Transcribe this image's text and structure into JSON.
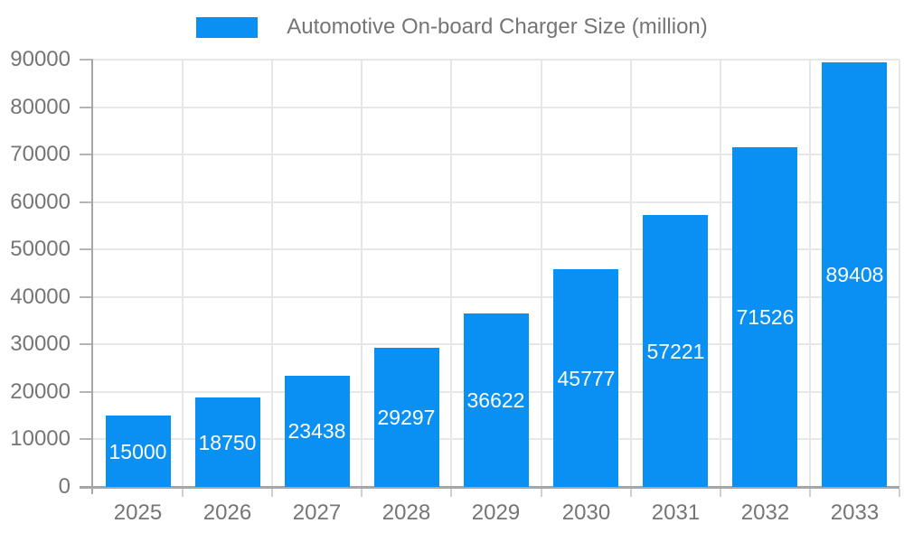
{
  "chart_data": {
    "type": "bar",
    "title": "Automotive On-board Charger Size (million)",
    "legend": {
      "label": "Automotive On-board Charger Size (million)",
      "position": "top"
    },
    "categories": [
      "2025",
      "2026",
      "2027",
      "2028",
      "2029",
      "2030",
      "2031",
      "2032",
      "2033"
    ],
    "values": [
      15000,
      18750,
      23438,
      29297,
      36622,
      45777,
      57221,
      71526,
      89408
    ],
    "value_labels": [
      "15000",
      "18750",
      "23438",
      "29297",
      "36622",
      "45777",
      "57221",
      "71526",
      "89408"
    ],
    "xlabel": "",
    "ylabel": "",
    "ylim": [
      0,
      90000
    ],
    "yticks": [
      0,
      10000,
      20000,
      30000,
      40000,
      50000,
      60000,
      70000,
      80000,
      90000
    ],
    "grid": true,
    "colors": {
      "bar": "#0A90F2",
      "bar_label": "#FFFFFF",
      "tick_label": "#757575",
      "legend_label": "#757575",
      "gridline": "#E7E7E7",
      "axis_line": "#A6A6A6",
      "y_tick_mark": "#B5B5B5",
      "x_tick_mark": "#CFCFCF",
      "background": "#FFFFFF"
    }
  }
}
